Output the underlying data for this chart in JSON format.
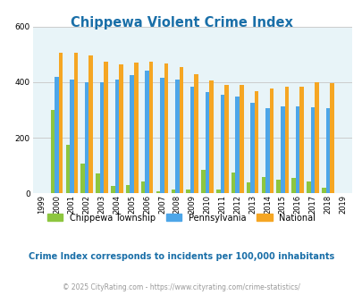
{
  "title": "Chippewa Violent Crime Index",
  "years": [
    1999,
    2000,
    2001,
    2002,
    2003,
    2004,
    2005,
    2006,
    2007,
    2008,
    2009,
    2010,
    2011,
    2012,
    2013,
    2014,
    2015,
    2016,
    2017,
    2018,
    2019
  ],
  "chippewa": [
    0,
    300,
    175,
    108,
    70,
    25,
    30,
    42,
    8,
    12,
    13,
    85,
    12,
    75,
    38,
    60,
    50,
    55,
    42,
    20,
    0
  ],
  "pennsylvania": [
    0,
    420,
    408,
    400,
    400,
    410,
    425,
    440,
    415,
    408,
    385,
    365,
    355,
    348,
    325,
    305,
    313,
    313,
    308,
    305,
    0
  ],
  "national": [
    0,
    507,
    507,
    495,
    472,
    463,
    469,
    473,
    466,
    453,
    430,
    405,
    390,
    390,
    368,
    376,
    383,
    383,
    400,
    395,
    0
  ],
  "chippewa_color": "#8dc63f",
  "pennsylvania_color": "#4da6e8",
  "national_color": "#f5a623",
  "plot_bg_color": "#e8f4f8",
  "title_color": "#1a6fa8",
  "ylim": [
    0,
    600
  ],
  "yticks": [
    0,
    200,
    400,
    600
  ],
  "subtitle": "Crime Index corresponds to incidents per 100,000 inhabitants",
  "subtitle_color": "#1a6fa8",
  "footer": "© 2025 CityRating.com - https://www.cityrating.com/crime-statistics/",
  "footer_color": "#999999",
  "bar_width": 0.27,
  "grid_color": "#cccccc"
}
